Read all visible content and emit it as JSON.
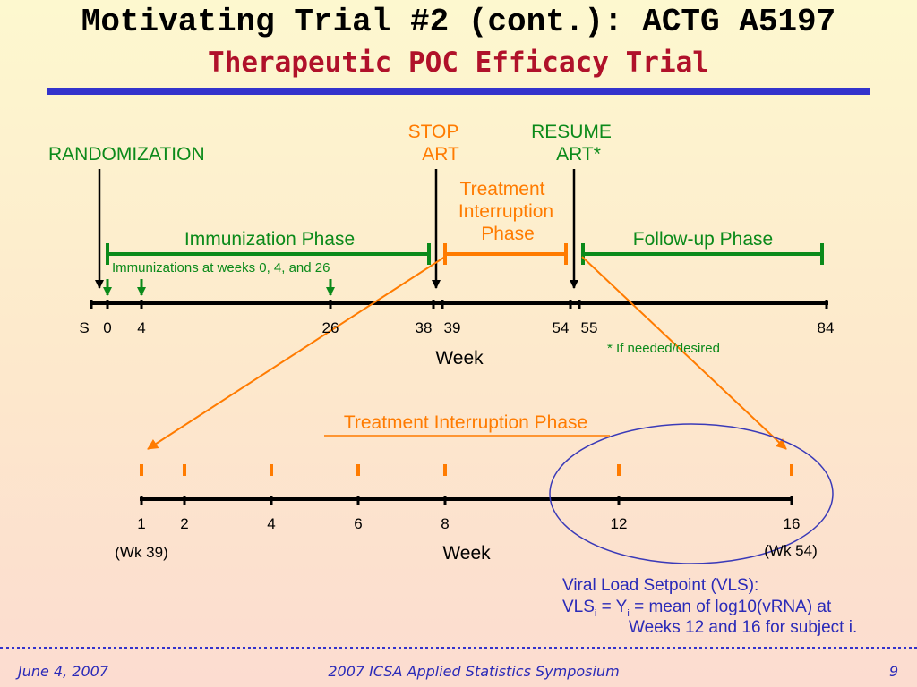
{
  "title": {
    "line1": "Motivating Trial #2 (cont.):  ACTG A5197",
    "line2": "Therapeutic POC Efficacy Trial"
  },
  "labels": {
    "randomization": "RANDOMIZATION",
    "stop_art_1": "STOP",
    "stop_art_2": "ART",
    "resume_art_1": "RESUME",
    "resume_art_2": "ART*",
    "ti_phase_1": "Treatment",
    "ti_phase_2": "Interruption",
    "ti_phase_3": "Phase",
    "immunization_phase": "Immunization Phase",
    "followup_phase": "Follow-up Phase",
    "immunizations_note": "Immunizations at weeks 0, 4, and 26",
    "if_needed": "* If needed/desired",
    "week_top": "Week",
    "ti_phase_title": "Treatment Interruption Phase",
    "week_bottom": "Week",
    "wk39": "(Wk 39)",
    "wk54": "(Wk 54)"
  },
  "top_timeline": {
    "ticks": [
      "S",
      "0",
      "4",
      "26",
      "38",
      "39",
      "54",
      "55",
      "84"
    ]
  },
  "bottom_timeline": {
    "ticks": [
      "1",
      "2",
      "4",
      "6",
      "8",
      "12",
      "16"
    ]
  },
  "vls": {
    "line1": "Viral Load Setpoint (VLS):",
    "line2_a": "VLS",
    "line2_sub1": "i",
    "line2_b": " = Y",
    "line2_sub2": "i",
    "line2_c": " = mean of log10(vRNA) at",
    "line3": "Weeks 12 and 16 for subject i."
  },
  "footer": {
    "date": "June 4, 2007",
    "event": "2007 ICSA Applied Statistics Symposium",
    "page": "9"
  },
  "colors": {
    "green": "#0b8a1a",
    "orange": "#ff7b00",
    "blue": "#2a2ab8",
    "title_red": "#b0112a"
  }
}
